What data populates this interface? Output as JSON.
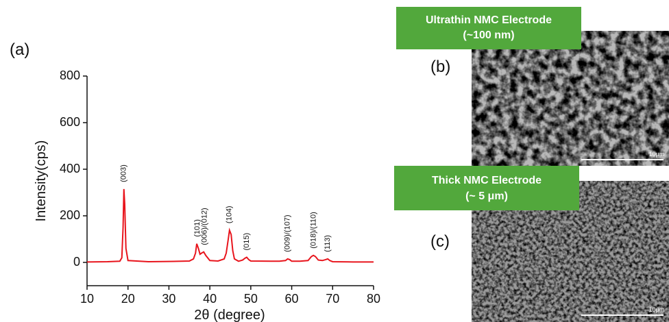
{
  "chart_data": {
    "type": "line",
    "panel_label": "(a)",
    "xlabel": "2θ (degree)",
    "ylabel": "Intensity(cps)",
    "xlim": [
      10,
      80
    ],
    "xticks": [
      10,
      20,
      30,
      40,
      50,
      60,
      70,
      80
    ],
    "ylim": [
      -100,
      800
    ],
    "yticks": [
      0,
      200,
      400,
      600,
      800
    ],
    "series": [
      {
        "color": "#e8141c",
        "x": [
          10,
          15,
          18,
          18.5,
          18.8,
          19.0,
          19.2,
          19.5,
          20,
          25,
          30,
          35,
          36,
          36.5,
          36.8,
          37.2,
          37.6,
          38,
          38.5,
          39,
          40,
          42,
          43.5,
          44,
          44.5,
          44.8,
          45.2,
          45.6,
          46,
          47,
          48,
          48.6,
          49,
          49.5,
          50,
          55,
          57,
          58.5,
          59,
          59.5,
          60,
          62,
          64,
          64.8,
          65.3,
          65.8,
          66.5,
          67.5,
          68.3,
          68.8,
          69.3,
          70,
          75,
          80
        ],
        "values": [
          2,
          3,
          5,
          20,
          150,
          315,
          250,
          60,
          8,
          3,
          4,
          6,
          15,
          40,
          80,
          60,
          35,
          40,
          45,
          30,
          8,
          6,
          15,
          40,
          100,
          138,
          120,
          50,
          15,
          5,
          10,
          18,
          22,
          12,
          6,
          5,
          5,
          8,
          15,
          12,
          5,
          5,
          8,
          25,
          30,
          25,
          10,
          8,
          12,
          15,
          8,
          3,
          2,
          2
        ]
      }
    ],
    "annotations": [
      {
        "text": "(003)",
        "x": 19
      },
      {
        "text": "(101)",
        "x": 37
      },
      {
        "text": "(006)/(012)",
        "x": 38.7
      },
      {
        "text": "(104)",
        "x": 44.8
      },
      {
        "text": "(015)",
        "x": 49
      },
      {
        "text": "(009)/(107)",
        "x": 59
      },
      {
        "text": "(018)/(110)",
        "x": 65.4
      },
      {
        "text": "(113)",
        "x": 68.8
      }
    ]
  },
  "panels": [
    {
      "label": "(b)",
      "title_lines": [
        "Ultrathin NMC Electrode",
        "(~100 nm)"
      ],
      "scale_bar": "10μm"
    },
    {
      "label": "(c)",
      "title_lines": [
        "Thick NMC Electrode",
        "(~ 5 μm)"
      ],
      "scale_bar": "10μm"
    }
  ]
}
